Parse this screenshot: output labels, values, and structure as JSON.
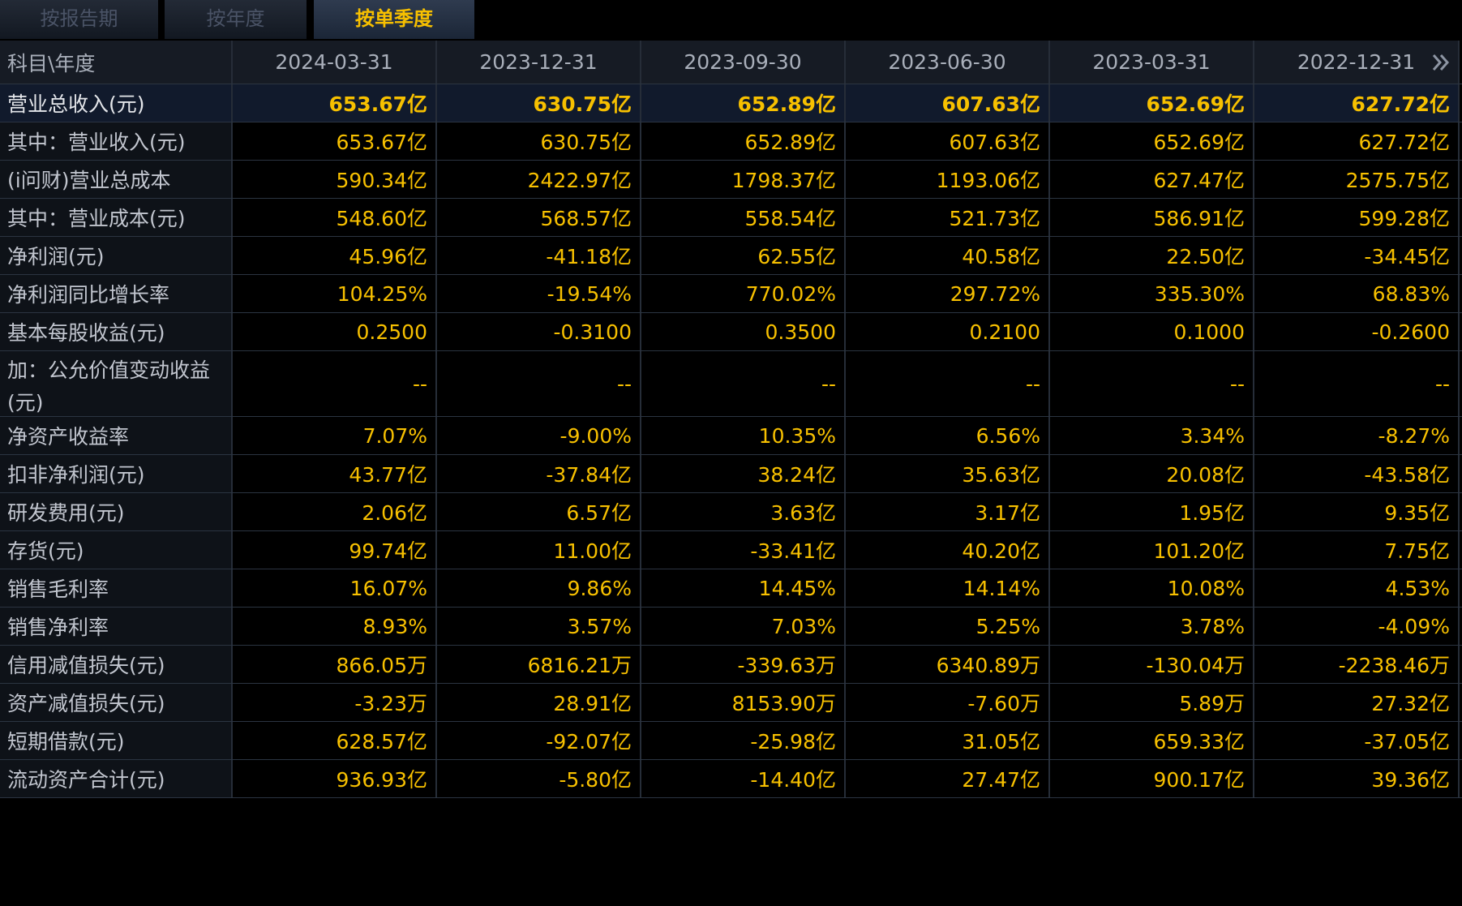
{
  "tabs": [
    {
      "label": "按报告期",
      "active": false
    },
    {
      "label": "按年度",
      "active": false
    },
    {
      "label": "按单季度",
      "active": true
    }
  ],
  "header": {
    "corner": "科目\\年度",
    "dates": [
      "2024-03-31",
      "2023-12-31",
      "2023-09-30",
      "2023-06-30",
      "2023-03-31",
      "2022-12-31"
    ],
    "next_icon": "double-chevron-right-icon"
  },
  "rows": [
    {
      "label": "营业总收入(元)",
      "values": [
        "653.67亿",
        "630.75亿",
        "652.89亿",
        "607.63亿",
        "652.69亿",
        "627.72亿"
      ]
    },
    {
      "label": "其中：营业收入(元)",
      "values": [
        "653.67亿",
        "630.75亿",
        "652.89亿",
        "607.63亿",
        "652.69亿",
        "627.72亿"
      ]
    },
    {
      "label": "(i问财)营业总成本",
      "values": [
        "590.34亿",
        "2422.97亿",
        "1798.37亿",
        "1193.06亿",
        "627.47亿",
        "2575.75亿"
      ]
    },
    {
      "label": "其中：营业成本(元)",
      "values": [
        "548.60亿",
        "568.57亿",
        "558.54亿",
        "521.73亿",
        "586.91亿",
        "599.28亿"
      ]
    },
    {
      "label": "净利润(元)",
      "values": [
        "45.96亿",
        "-41.18亿",
        "62.55亿",
        "40.58亿",
        "22.50亿",
        "-34.45亿"
      ]
    },
    {
      "label": "净利润同比增长率",
      "values": [
        "104.25%",
        "-19.54%",
        "770.02%",
        "297.72%",
        "335.30%",
        "68.83%"
      ]
    },
    {
      "label": "基本每股收益(元)",
      "values": [
        "0.2500",
        "-0.3100",
        "0.3500",
        "0.2100",
        "0.1000",
        "-0.2600"
      ]
    },
    {
      "label": "加：公允价值变动收益(元)",
      "label_line1": "加：公允价值变动收益",
      "label_line2": "(元)",
      "values": [
        "--",
        "--",
        "--",
        "--",
        "--",
        "--"
      ]
    },
    {
      "label": "净资产收益率",
      "values": [
        "7.07%",
        "-9.00%",
        "10.35%",
        "6.56%",
        "3.34%",
        "-8.27%"
      ]
    },
    {
      "label": "扣非净利润(元)",
      "values": [
        "43.77亿",
        "-37.84亿",
        "38.24亿",
        "35.63亿",
        "20.08亿",
        "-43.58亿"
      ]
    },
    {
      "label": "研发费用(元)",
      "values": [
        "2.06亿",
        "6.57亿",
        "3.63亿",
        "3.17亿",
        "1.95亿",
        "9.35亿"
      ]
    },
    {
      "label": "存货(元)",
      "values": [
        "99.74亿",
        "11.00亿",
        "-33.41亿",
        "40.20亿",
        "101.20亿",
        "7.75亿"
      ]
    },
    {
      "label": "销售毛利率",
      "values": [
        "16.07%",
        "9.86%",
        "14.45%",
        "14.14%",
        "10.08%",
        "4.53%"
      ]
    },
    {
      "label": "销售净利率",
      "values": [
        "8.93%",
        "3.57%",
        "7.03%",
        "5.25%",
        "3.78%",
        "-4.09%"
      ]
    },
    {
      "label": "信用减值损失(元)",
      "values": [
        "866.05万",
        "6816.21万",
        "-339.63万",
        "6340.89万",
        "-130.04万",
        "-2238.46万"
      ]
    },
    {
      "label": "资产减值损失(元)",
      "values": [
        "-3.23万",
        "28.91亿",
        "8153.90万",
        "-7.60万",
        "5.89万",
        "27.32亿"
      ]
    },
    {
      "label": "短期借款(元)",
      "values": [
        "628.57亿",
        "-92.07亿",
        "-25.98亿",
        "31.05亿",
        "659.33亿",
        "-37.05亿"
      ]
    },
    {
      "label": "流动资产合计(元)",
      "values": [
        "936.93亿",
        "-5.80亿",
        "-14.40亿",
        "27.47亿",
        "900.17亿",
        "39.36亿"
      ]
    }
  ]
}
